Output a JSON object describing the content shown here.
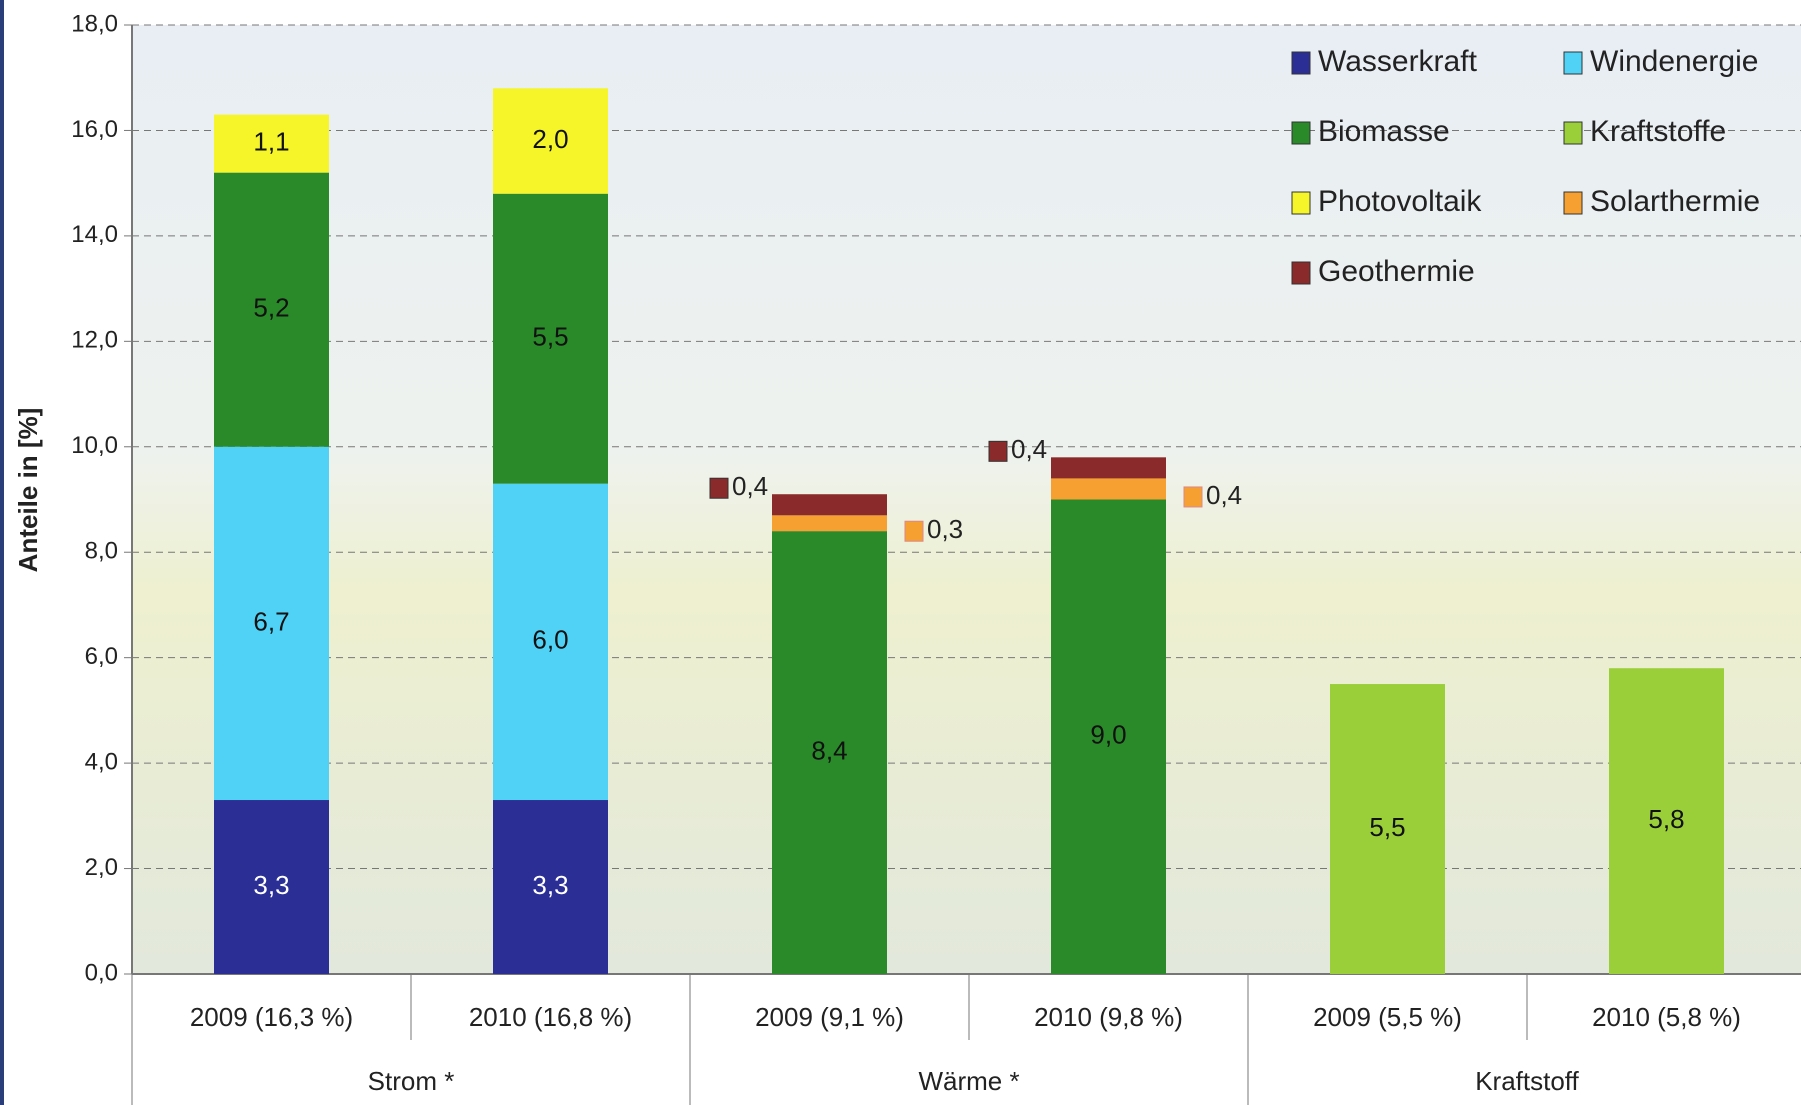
{
  "chart_data": {
    "type": "stacked_bar",
    "y_label": "Anteile in [%]",
    "categories": [
      "2009 (16,3 %)",
      "2010 (16,8 %)",
      "2009 (9,1 %)",
      "2010 (9,8 %)",
      "2009 (5,5 %)",
      "2010 (5,8 %)"
    ],
    "groups": [
      "Strom *",
      "Wärme *",
      "Kraftstoff"
    ],
    "series": [
      {
        "name": "Wasserkraft",
        "color": "#2b2f95",
        "values": [
          3.3,
          3.3,
          null,
          null,
          null,
          null
        ],
        "value_labels": [
          "3,3",
          "3,3",
          null,
          null,
          null,
          null
        ]
      },
      {
        "name": "Windenergie",
        "color": "#4fd2f5",
        "values": [
          6.7,
          6.0,
          null,
          null,
          null,
          null
        ],
        "value_labels": [
          "6,7",
          "6,0",
          null,
          null,
          null,
          null
        ]
      },
      {
        "name": "Biomasse",
        "color": "#2a8a2a",
        "values": [
          5.2,
          5.5,
          8.4,
          9.0,
          null,
          null
        ],
        "value_labels": [
          "5,2",
          "5,5",
          "8,4",
          "9,0",
          null,
          null
        ]
      },
      {
        "name": "Kraftstoffe",
        "color": "#9bcf3a",
        "values": [
          null,
          null,
          null,
          null,
          5.5,
          5.8
        ],
        "value_labels": [
          null,
          null,
          null,
          null,
          "5,5",
          "5,8"
        ]
      },
      {
        "name": "Photovoltaik",
        "color": "#f5f52a",
        "values": [
          1.1,
          2.0,
          null,
          null,
          null,
          null
        ],
        "value_labels": [
          "1,1",
          "2,0",
          null,
          null,
          null,
          null
        ]
      },
      {
        "name": "Solarthermie",
        "color": "#f5a030",
        "values": [
          null,
          null,
          0.3,
          0.4,
          null,
          null
        ],
        "value_labels": [
          null,
          null,
          "0,3",
          "0,4",
          null,
          null
        ]
      },
      {
        "name": "Geothermie",
        "color": "#8a2a2a",
        "values": [
          null,
          null,
          0.4,
          0.4,
          null,
          null
        ],
        "value_labels": [
          null,
          null,
          "0,4",
          "0,4",
          null,
          null
        ]
      }
    ],
    "ylim": [
      0,
      18
    ],
    "yticks": [
      {
        "value": 0,
        "label": "0,0"
      },
      {
        "value": 2,
        "label": "2,0"
      },
      {
        "value": 4,
        "label": "4,0"
      },
      {
        "value": 6,
        "label": "6,0"
      },
      {
        "value": 8,
        "label": "8,0"
      },
      {
        "value": 10,
        "label": "10,0"
      },
      {
        "value": 12,
        "label": "12,0"
      },
      {
        "value": 14,
        "label": "14,0"
      },
      {
        "value": 16,
        "label": "16,0"
      },
      {
        "value": 18,
        "label": "18,0"
      }
    ],
    "grid": true
  }
}
